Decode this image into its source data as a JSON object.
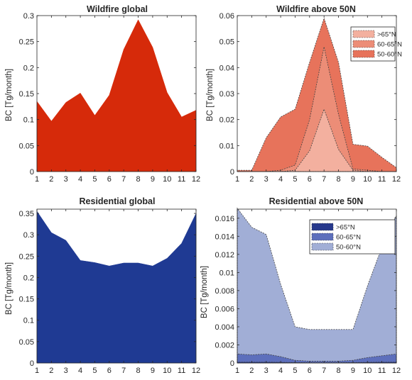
{
  "colors": {
    "wildfire_global": "#d62a0a",
    "wf_50_60": "#e7735b",
    "wf_60_65": "#ec8d77",
    "wf_gt65": "#f3b09f",
    "residential_global": "#1f3a93",
    "res_gt65": "#26388c",
    "res_60_65": "#5d6fbc",
    "res_50_60": "#a1aed6"
  },
  "chart_data": [
    {
      "type": "area",
      "title": "Wildfire global",
      "xlabel": "",
      "ylabel": "BC [Tg/month]",
      "x": [
        1,
        2,
        3,
        4,
        5,
        6,
        7,
        8,
        9,
        10,
        11,
        12
      ],
      "xlim": [
        1,
        12
      ],
      "ylim": [
        0,
        0.3
      ],
      "xticks": [
        "1",
        "2",
        "3",
        "4",
        "5",
        "6",
        "7",
        "8",
        "9",
        "10",
        "11",
        "12"
      ],
      "yticks": [
        "0",
        "0.05",
        "0.1",
        "0.15",
        "0.2",
        "0.25",
        "0.3"
      ],
      "series": [
        {
          "color": "#d62a0a",
          "values": [
            0.135,
            0.097,
            0.133,
            0.151,
            0.108,
            0.147,
            0.235,
            0.292,
            0.239,
            0.152,
            0.105,
            0.118
          ]
        }
      ]
    },
    {
      "type": "area",
      "title": "Wildfire above 50N",
      "xlabel": "",
      "ylabel": "BC [Tg/month]",
      "x": [
        1,
        2,
        3,
        4,
        5,
        6,
        7,
        8,
        9,
        10,
        11,
        12
      ],
      "xlim": [
        1,
        12
      ],
      "ylim": [
        0,
        0.06
      ],
      "xticks": [
        "1",
        "2",
        "3",
        "4",
        "5",
        "6",
        "7",
        "8",
        "9",
        "10",
        "11",
        "12"
      ],
      "yticks": [
        "0",
        "0.01",
        "0.02",
        "0.03",
        "0.04",
        "0.05",
        "0.06"
      ],
      "legend_position": "top-right",
      "series": [
        {
          "name": ">65°N",
          "color": "#f3b09f",
          "values": [
            0,
            0,
            0,
            0,
            0.0005,
            0.008,
            0.024,
            0.0085,
            0.0005,
            0,
            0,
            0
          ]
        },
        {
          "name": "60-65°N",
          "color": "#ec8d77",
          "values": [
            0,
            0,
            0,
            0.0005,
            0.0025,
            0.02,
            0.048,
            0.022,
            0.001,
            0.0005,
            0,
            0
          ]
        },
        {
          "name": "50-60°N",
          "color": "#e7735b",
          "values": [
            0.0005,
            0.0005,
            0.013,
            0.021,
            0.024,
            0.042,
            0.059,
            0.042,
            0.0105,
            0.0098,
            0.0055,
            0.0015
          ]
        }
      ]
    },
    {
      "type": "area",
      "title": "Residential global",
      "xlabel": "",
      "ylabel": "BC [Tg/month]",
      "x": [
        1,
        2,
        3,
        4,
        5,
        6,
        7,
        8,
        9,
        10,
        11,
        12
      ],
      "xlim": [
        1,
        12
      ],
      "ylim": [
        0,
        0.36
      ],
      "xticks": [
        "1",
        "2",
        "3",
        "4",
        "5",
        "6",
        "7",
        "8",
        "9",
        "10",
        "11",
        "12"
      ],
      "yticks": [
        "0",
        "0.05",
        "0.1",
        "0.15",
        "0.2",
        "0.25",
        "0.3",
        "0.35"
      ],
      "series": [
        {
          "color": "#1f3a93",
          "values": [
            0.355,
            0.305,
            0.287,
            0.24,
            0.235,
            0.227,
            0.234,
            0.234,
            0.227,
            0.245,
            0.28,
            0.35
          ]
        }
      ]
    },
    {
      "type": "area",
      "title": "Residential above 50N",
      "xlabel": "",
      "ylabel": "BC [Tg/month]",
      "x": [
        1,
        2,
        3,
        4,
        5,
        6,
        7,
        8,
        9,
        10,
        11,
        12
      ],
      "xlim": [
        1,
        12
      ],
      "ylim": [
        0,
        0.017
      ],
      "xticks": [
        "1",
        "2",
        "3",
        "4",
        "5",
        "6",
        "7",
        "8",
        "9",
        "10",
        "11",
        "12"
      ],
      "yticks": [
        "0",
        "0.002",
        "0.004",
        "0.006",
        "0.008",
        "0.01",
        "0.012",
        "0.014",
        "0.016"
      ],
      "legend_position": "top-right",
      "series": [
        {
          "name": ">65°N",
          "color": "#26388c",
          "values": [
            0.0001,
            0.0001,
            0.0001,
            8e-05,
            5e-05,
            4e-05,
            4e-05,
            4e-05,
            5e-05,
            8e-05,
            0.0001,
            0.0001
          ]
        },
        {
          "name": "60-65°N",
          "color": "#5d6fbc",
          "values": [
            0.001,
            0.0009,
            0.001,
            0.0007,
            0.0003,
            0.0002,
            0.0002,
            0.0002,
            0.0003,
            0.0006,
            0.0008,
            0.001
          ]
        },
        {
          "name": "50-60°N",
          "color": "#a1aed6",
          "values": [
            0.0171,
            0.015,
            0.0142,
            0.0087,
            0.004,
            0.0037,
            0.0037,
            0.0037,
            0.0037,
            0.0085,
            0.0128,
            0.0163
          ]
        }
      ]
    }
  ]
}
